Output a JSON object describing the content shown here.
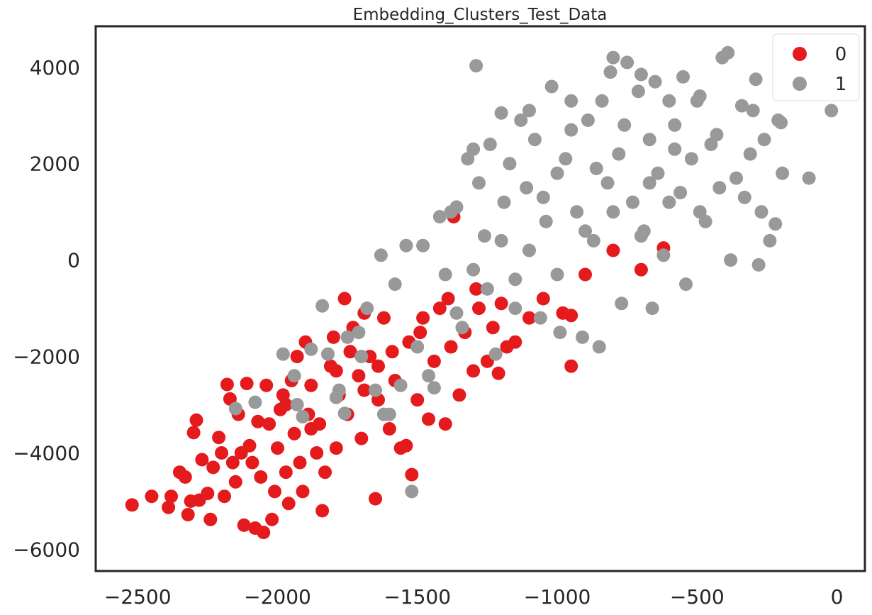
{
  "chart_data": {
    "type": "scatter",
    "title": "Embedding_Clusters_Test_Data",
    "xlabel": "",
    "ylabel": "",
    "xlim": [
      -2650,
      100
    ],
    "ylim": [
      -6450,
      4850
    ],
    "x_ticks": [
      -2500,
      -2000,
      -1500,
      -1000,
      -500,
      0
    ],
    "x_tick_labels": [
      "−2500",
      "−2000",
      "−1500",
      "−1000",
      "−500",
      "0"
    ],
    "y_ticks": [
      -6000,
      -4000,
      -2000,
      0,
      2000,
      4000
    ],
    "y_tick_labels": [
      "−6000",
      "−4000",
      "−2000",
      "0",
      "2000",
      "4000"
    ],
    "grid": false,
    "legend_position": "top-right",
    "series": [
      {
        "name": "0",
        "color": "#e41a1c",
        "points": [
          [
            -2520,
            -5080
          ],
          [
            -2450,
            -4900
          ],
          [
            -2390,
            -5130
          ],
          [
            -2380,
            -4900
          ],
          [
            -2350,
            -4400
          ],
          [
            -2330,
            -4500
          ],
          [
            -2320,
            -5280
          ],
          [
            -2310,
            -5000
          ],
          [
            -2300,
            -3580
          ],
          [
            -2290,
            -3320
          ],
          [
            -2280,
            -4980
          ],
          [
            -2270,
            -4140
          ],
          [
            -2250,
            -4840
          ],
          [
            -2240,
            -5380
          ],
          [
            -2230,
            -4300
          ],
          [
            -2210,
            -3680
          ],
          [
            -2200,
            -4000
          ],
          [
            -2190,
            -4900
          ],
          [
            -2180,
            -2580
          ],
          [
            -2170,
            -2880
          ],
          [
            -2160,
            -4200
          ],
          [
            -2150,
            -4600
          ],
          [
            -2140,
            -3200
          ],
          [
            -2130,
            -4000
          ],
          [
            -2120,
            -5500
          ],
          [
            -2110,
            -2560
          ],
          [
            -2100,
            -3850
          ],
          [
            -2090,
            -4200
          ],
          [
            -2080,
            -5560
          ],
          [
            -2060,
            -4500
          ],
          [
            -2050,
            -5650
          ],
          [
            -2040,
            -2600
          ],
          [
            -2030,
            -3400
          ],
          [
            -2020,
            -5380
          ],
          [
            -2010,
            -4800
          ],
          [
            -2000,
            -3900
          ],
          [
            -1990,
            -3100
          ],
          [
            -1980,
            -2800
          ],
          [
            -1970,
            -4400
          ],
          [
            -1960,
            -5050
          ],
          [
            -1950,
            -2500
          ],
          [
            -1940,
            -3600
          ],
          [
            -1930,
            -2000
          ],
          [
            -1920,
            -4200
          ],
          [
            -1910,
            -4800
          ],
          [
            -1900,
            -1700
          ],
          [
            -1890,
            -3200
          ],
          [
            -1880,
            -2600
          ],
          [
            -1860,
            -4000
          ],
          [
            -1850,
            -3400
          ],
          [
            -1840,
            -5200
          ],
          [
            -1830,
            -4400
          ],
          [
            -1810,
            -2200
          ],
          [
            -1800,
            -1600
          ],
          [
            -1790,
            -3900
          ],
          [
            -1780,
            -2800
          ],
          [
            -1760,
            -800
          ],
          [
            -1750,
            -3200
          ],
          [
            -1730,
            -1400
          ],
          [
            -1710,
            -2400
          ],
          [
            -1700,
            -3700
          ],
          [
            -1690,
            -1100
          ],
          [
            -1670,
            -2000
          ],
          [
            -1650,
            -4950
          ],
          [
            -1640,
            -2900
          ],
          [
            -1620,
            -1200
          ],
          [
            -1600,
            -3500
          ],
          [
            -1580,
            -2500
          ],
          [
            -1560,
            -3900
          ],
          [
            -1540,
            -3850
          ],
          [
            -1530,
            -1700
          ],
          [
            -1520,
            -4450
          ],
          [
            -1500,
            -2900
          ],
          [
            -1480,
            -1200
          ],
          [
            -1460,
            -3300
          ],
          [
            -1440,
            -2100
          ],
          [
            -1420,
            -1000
          ],
          [
            -1400,
            -3400
          ],
          [
            -1380,
            -1800
          ],
          [
            -1370,
            900
          ],
          [
            -1350,
            -2800
          ],
          [
            -1330,
            -1500
          ],
          [
            -1300,
            -2300
          ],
          [
            -1280,
            -1000
          ],
          [
            -1250,
            -2100
          ],
          [
            -1230,
            -1400
          ],
          [
            -1210,
            -2350
          ],
          [
            -1200,
            -900
          ],
          [
            -1180,
            -1800
          ],
          [
            -1150,
            -1700
          ],
          [
            -1100,
            -1200
          ],
          [
            -1050,
            -800
          ],
          [
            -980,
            -1100
          ],
          [
            -950,
            -1150
          ],
          [
            -950,
            -2200
          ],
          [
            -900,
            -300
          ],
          [
            -800,
            200
          ],
          [
            -700,
            -200
          ],
          [
            -620,
            250
          ],
          [
            -2070,
            -3350
          ],
          [
            -1970,
            -3000
          ],
          [
            -1880,
            -3500
          ],
          [
            -1790,
            -2300
          ],
          [
            -1690,
            -2700
          ],
          [
            -1590,
            -1900
          ],
          [
            -1490,
            -1500
          ],
          [
            -1390,
            -800
          ],
          [
            -1290,
            -600
          ],
          [
            -1740,
            -1900
          ],
          [
            -1640,
            -2200
          ]
        ]
      },
      {
        "name": "1",
        "color": "#999999",
        "points": [
          [
            -2150,
            -3080
          ],
          [
            -2080,
            -2950
          ],
          [
            -1980,
            -1950
          ],
          [
            -1940,
            -2400
          ],
          [
            -1930,
            -3000
          ],
          [
            -1910,
            -3250
          ],
          [
            -1880,
            -1850
          ],
          [
            -1840,
            -950
          ],
          [
            -1820,
            -1950
          ],
          [
            -1790,
            -2850
          ],
          [
            -1780,
            -2700
          ],
          [
            -1760,
            -3180
          ],
          [
            -1750,
            -1600
          ],
          [
            -1710,
            -1500
          ],
          [
            -1700,
            -2000
          ],
          [
            -1680,
            -1000
          ],
          [
            -1650,
            -2700
          ],
          [
            -1630,
            100
          ],
          [
            -1620,
            -3200
          ],
          [
            -1600,
            -3200
          ],
          [
            -1580,
            -500
          ],
          [
            -1560,
            -2600
          ],
          [
            -1540,
            300
          ],
          [
            -1520,
            -4800
          ],
          [
            -1500,
            -1800
          ],
          [
            -1480,
            300
          ],
          [
            -1460,
            -2400
          ],
          [
            -1440,
            -2650
          ],
          [
            -1420,
            900
          ],
          [
            -1400,
            -300
          ],
          [
            -1380,
            1000
          ],
          [
            -1360,
            1100
          ],
          [
            -1340,
            -1400
          ],
          [
            -1320,
            2100
          ],
          [
            -1300,
            2300
          ],
          [
            -1290,
            4030
          ],
          [
            -1280,
            1600
          ],
          [
            -1260,
            500
          ],
          [
            -1240,
            2400
          ],
          [
            -1220,
            -1950
          ],
          [
            -1200,
            3050
          ],
          [
            -1190,
            1200
          ],
          [
            -1170,
            2000
          ],
          [
            -1150,
            -1000
          ],
          [
            -1130,
            2900
          ],
          [
            -1110,
            1500
          ],
          [
            -1100,
            3100
          ],
          [
            -1080,
            2500
          ],
          [
            -1060,
            -1200
          ],
          [
            -1040,
            800
          ],
          [
            -1020,
            3600
          ],
          [
            -1000,
            1800
          ],
          [
            -990,
            -1500
          ],
          [
            -970,
            2100
          ],
          [
            -950,
            3300
          ],
          [
            -930,
            1000
          ],
          [
            -910,
            -1600
          ],
          [
            -890,
            2900
          ],
          [
            -870,
            400
          ],
          [
            -850,
            -1800
          ],
          [
            -840,
            3300
          ],
          [
            -820,
            1600
          ],
          [
            -810,
            3900
          ],
          [
            -800,
            4200
          ],
          [
            -780,
            2200
          ],
          [
            -770,
            -900
          ],
          [
            -750,
            4100
          ],
          [
            -730,
            1200
          ],
          [
            -710,
            3500
          ],
          [
            -700,
            3850
          ],
          [
            -690,
            600
          ],
          [
            -670,
            2500
          ],
          [
            -660,
            -1000
          ],
          [
            -650,
            3700
          ],
          [
            -640,
            1800
          ],
          [
            -620,
            100
          ],
          [
            -600,
            3300
          ],
          [
            -580,
            2800
          ],
          [
            -560,
            1400
          ],
          [
            -550,
            3800
          ],
          [
            -540,
            -500
          ],
          [
            -520,
            2100
          ],
          [
            -500,
            3300
          ],
          [
            -490,
            3400
          ],
          [
            -470,
            800
          ],
          [
            -450,
            2400
          ],
          [
            -430,
            2600
          ],
          [
            -420,
            1500
          ],
          [
            -410,
            4200
          ],
          [
            -390,
            4300
          ],
          [
            -380,
            0
          ],
          [
            -360,
            1700
          ],
          [
            -340,
            3200
          ],
          [
            -330,
            1300
          ],
          [
            -310,
            2200
          ],
          [
            -300,
            3100
          ],
          [
            -290,
            3750
          ],
          [
            -280,
            -100
          ],
          [
            -270,
            1000
          ],
          [
            -260,
            2500
          ],
          [
            -240,
            400
          ],
          [
            -220,
            750
          ],
          [
            -210,
            2900
          ],
          [
            -200,
            2850
          ],
          [
            -195,
            1800
          ],
          [
            -100,
            1700
          ],
          [
            -20,
            3100
          ],
          [
            -1360,
            -1100
          ],
          [
            -1250,
            -600
          ],
          [
            -1150,
            -400
          ],
          [
            -1050,
            1300
          ],
          [
            -950,
            2700
          ],
          [
            -860,
            1900
          ],
          [
            -760,
            2800
          ],
          [
            -670,
            1600
          ],
          [
            -580,
            2300
          ],
          [
            -490,
            1000
          ],
          [
            -1100,
            200
          ],
          [
            -1000,
            -300
          ],
          [
            -900,
            600
          ],
          [
            -800,
            1000
          ],
          [
            -700,
            500
          ],
          [
            -600,
            1200
          ],
          [
            -1200,
            400
          ],
          [
            -1300,
            -200
          ]
        ]
      }
    ]
  }
}
